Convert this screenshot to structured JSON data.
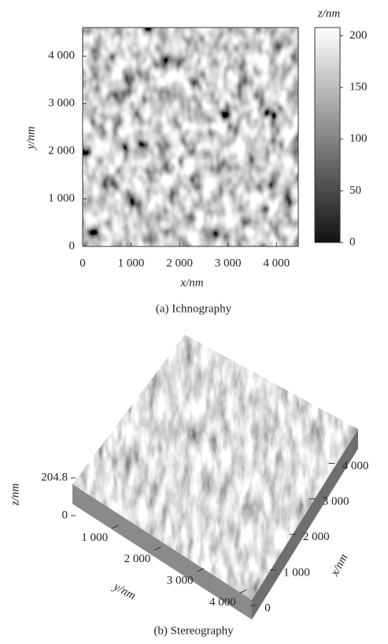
{
  "panel_a": {
    "caption": "(a) Ichnography",
    "x_label": "x/nm",
    "y_label": "y/nm",
    "xlim": [
      0,
      4500
    ],
    "xticks": [
      0,
      {
        "value": 1000,
        "label": "1 000"
      },
      {
        "value": 2000,
        "label": "2 000"
      },
      {
        "value": 3000,
        "label": "3 000"
      },
      {
        "value": 4000,
        "label": "4 000"
      }
    ],
    "ylim": [
      0,
      4600
    ],
    "yticks": [
      0,
      {
        "value": 1000,
        "label": "1 000"
      },
      {
        "value": 2000,
        "label": "2 000"
      },
      {
        "value": 3000,
        "label": "3 000"
      },
      {
        "value": 4000,
        "label": "4 000"
      }
    ],
    "colorbar": {
      "label": "z/nm",
      "lim": [
        0,
        208
      ],
      "ticks": [
        0,
        50,
        100,
        150,
        200
      ]
    }
  },
  "panel_b": {
    "caption": "(b) Stereography",
    "z_label": "z/nm",
    "y_label": "y/nm",
    "x_label": "x/nm",
    "zticks": [
      0,
      204.8
    ],
    "ylim": [
      0,
      4500
    ],
    "yticks": [
      {
        "value": 1000,
        "label": "1 000"
      },
      {
        "value": 2000,
        "label": "2 000"
      },
      {
        "value": 3000,
        "label": "3 000"
      },
      {
        "value": 4000,
        "label": "4 000"
      }
    ],
    "xlim": [
      0,
      4500
    ],
    "xticks": [
      0,
      {
        "value": 1000,
        "label": "1 000"
      },
      {
        "value": 2000,
        "label": "2 000"
      },
      {
        "value": 3000,
        "label": "3 000"
      },
      {
        "value": 4000,
        "label": "4 000"
      }
    ]
  }
}
